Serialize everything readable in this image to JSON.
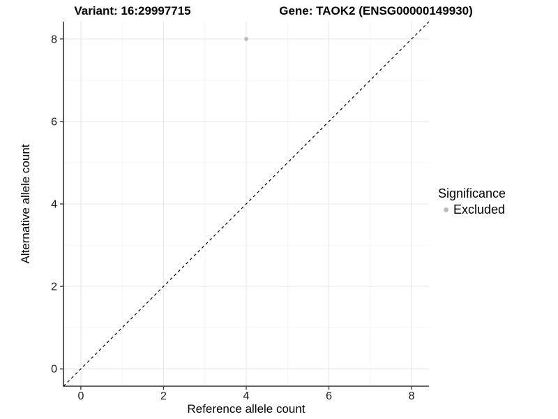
{
  "header": {
    "variant_title": "Variant: 16:29997715",
    "gene_title": "Gene: TAOK2 (ENSG00000149930)"
  },
  "chart_data": {
    "type": "scatter",
    "xlabel": "Reference allele count",
    "ylabel": "Alternative allele count",
    "xlim": [
      -0.42,
      8.42
    ],
    "ylim": [
      -0.42,
      8.42
    ],
    "x_ticks": [
      0,
      2,
      4,
      6,
      8
    ],
    "y_ticks": [
      0,
      2,
      4,
      6,
      8
    ],
    "x_minor_ticks": [
      1,
      3,
      5,
      7
    ],
    "y_minor_ticks": [
      1,
      3,
      5,
      7
    ],
    "grid": true,
    "reference_line": {
      "type": "identity",
      "equation": "y = x",
      "style": "dashed",
      "from": [
        -0.42,
        -0.42
      ],
      "to": [
        8.42,
        8.42
      ]
    },
    "series": [
      {
        "name": "Excluded",
        "color": "#bdbdbd",
        "points": [
          {
            "x": 4,
            "y": 8
          }
        ]
      }
    ],
    "legend": {
      "title": "Significance",
      "position": "right",
      "items": [
        {
          "label": "Excluded",
          "color": "#bdbdbd",
          "marker": "circle"
        }
      ]
    },
    "colors": {
      "background": "#ffffff",
      "grid_major": "#e8e8e8",
      "grid_minor": "#f4f4f4",
      "axis_line": "#333333",
      "tick_mark": "#333333",
      "tick_label": "#1a1a1a",
      "reference_line": "#000000"
    }
  }
}
